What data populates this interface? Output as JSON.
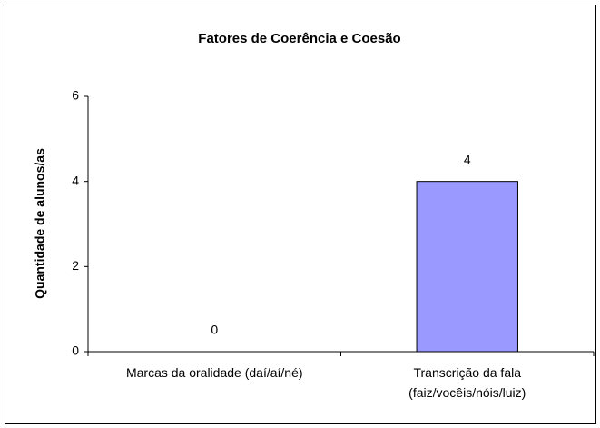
{
  "chart_data": {
    "type": "bar",
    "title": "Fatores de Coerência e Coesão",
    "y_label": "Quantidade de alunos/as",
    "categories": [
      "Marcas da oralidade (daí/aí/né)",
      "Transcrição da fala (faiz/vocêis/nóis/luiz)"
    ],
    "values": [
      0,
      4
    ],
    "color": "#9999ff",
    "ylim": [
      0,
      6
    ],
    "yticks": [
      0,
      2,
      4,
      6
    ],
    "grid": false
  }
}
